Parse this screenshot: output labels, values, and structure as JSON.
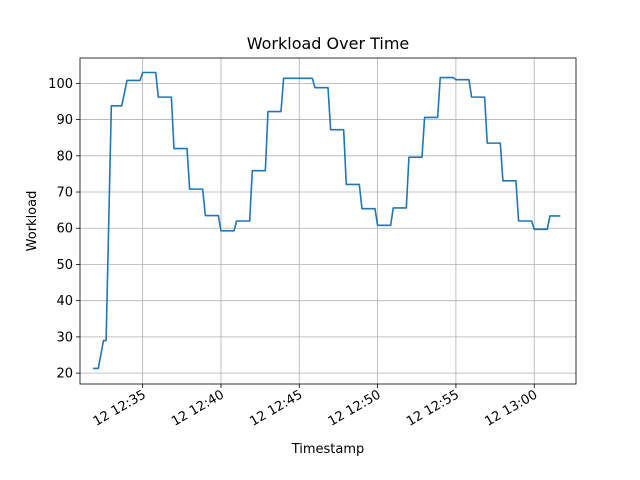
{
  "chart_data": {
    "type": "line",
    "title": "Workload Over Time",
    "xlabel": "Timestamp",
    "ylabel": "Workload",
    "date": "12",
    "grid": true,
    "x_ticks": [
      "12:35",
      "12:40",
      "12:45",
      "12:50",
      "12:55",
      "13:00"
    ],
    "x_tick_labels": [
      "12 12:35",
      "12 12:40",
      "12 12:45",
      "12 12:50",
      "12 12:55",
      "12 13:00"
    ],
    "xlim": [
      "12:31:00",
      "13:02:40"
    ],
    "y_ticks": [
      20,
      30,
      40,
      50,
      60,
      70,
      80,
      90,
      100
    ],
    "ylim": [
      17,
      107
    ],
    "line_color": "#1f77b4",
    "series": [
      {
        "x": [
          "12:31:50",
          "12:32:10",
          "12:32:30",
          "12:32:40",
          "12:33:00",
          "12:33:40",
          "12:34:00",
          "12:34:50",
          "12:35:00",
          "12:35:50",
          "12:36:00",
          "12:36:50",
          "12:37:00",
          "12:37:50",
          "12:38:00",
          "12:38:50",
          "12:39:00",
          "12:39:50",
          "12:40:00",
          "12:40:50",
          "12:41:00",
          "12:41:50",
          "12:42:00",
          "12:42:50",
          "12:43:00",
          "12:43:50",
          "12:44:00",
          "12:45:50",
          "12:46:00",
          "12:46:50",
          "12:47:00",
          "12:47:50",
          "12:48:00",
          "12:48:50",
          "12:49:00",
          "12:49:50",
          "12:50:00",
          "12:50:50",
          "12:51:00",
          "12:51:50",
          "12:52:00",
          "12:52:50",
          "12:53:00",
          "12:53:50",
          "12:54:00",
          "12:54:50",
          "12:55:00",
          "12:55:50",
          "12:56:00",
          "12:56:50",
          "12:57:00",
          "12:57:50",
          "12:58:00",
          "12:58:50",
          "12:59:00",
          "12:59:50",
          "13:00:00",
          "13:00:50",
          "13:01:00",
          "13:01:40"
        ],
        "y": [
          21.3,
          21.3,
          29,
          29,
          93.8,
          93.8,
          100.8,
          100.8,
          103,
          103,
          96.2,
          96.2,
          82,
          82,
          70.8,
          70.8,
          63.5,
          63.5,
          59.3,
          59.3,
          62,
          62,
          75.9,
          75.9,
          92.2,
          92.2,
          101.4,
          101.4,
          98.8,
          98.8,
          87.2,
          87.2,
          72.1,
          72.1,
          65.4,
          65.4,
          60.8,
          60.8,
          65.6,
          65.6,
          79.6,
          79.6,
          90.6,
          90.6,
          101.6,
          101.6,
          101,
          101,
          96.2,
          96.2,
          83.5,
          83.5,
          73.1,
          73.1,
          62,
          62,
          59.7,
          59.7,
          63.4,
          63.4
        ]
      }
    ]
  }
}
